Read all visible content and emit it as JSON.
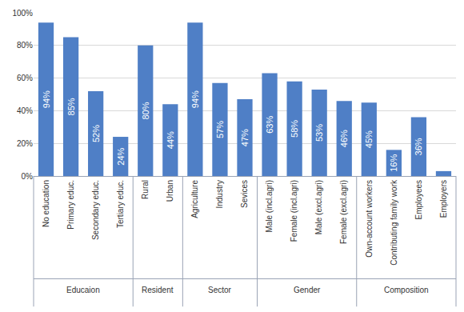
{
  "chart_data": {
    "type": "bar",
    "categories": [
      "No education",
      "Primary educ.",
      "Secondary educ.",
      "Tertiary educ.",
      "Rural",
      "Urban",
      "Agriculture",
      "Industry",
      "Sevices",
      "Male (incl.agri)",
      "Female (incl.agri)",
      "Male (excl.agri)",
      "Female (excl.agri)",
      "Own-account workers",
      "Contributing family work",
      "Employees",
      "Employers"
    ],
    "groups": [
      "Educaion",
      "Educaion",
      "Educaion",
      "Educaion",
      "Resident",
      "Resident",
      "Sector",
      "Sector",
      "Sector",
      "Gender",
      "Gender",
      "Gender",
      "Gender",
      "Composition",
      "Composition",
      "Composition",
      "Composition"
    ],
    "values": [
      94,
      85,
      52,
      24,
      80,
      44,
      94,
      57,
      47,
      63,
      58,
      53,
      46,
      45,
      16,
      36,
      3
    ],
    "value_labels": [
      "94%",
      "85%",
      "52%",
      "24%",
      "80%",
      "44%",
      "94%",
      "57%",
      "47%",
      "63%",
      "58%",
      "53%",
      "46%",
      "45%",
      "16%",
      "36%",
      null
    ],
    "data_labels": true,
    "color": "#4f7fc6",
    "ylim": [
      0,
      100
    ],
    "yticks": [
      {
        "value": 0,
        "label": "0%"
      },
      {
        "value": 20,
        "label": "20%"
      },
      {
        "value": 40,
        "label": "40%"
      },
      {
        "value": 60,
        "label": "60%"
      },
      {
        "value": 80,
        "label": "80%"
      },
      {
        "value": 100,
        "label": "100%"
      }
    ],
    "grid": true
  }
}
